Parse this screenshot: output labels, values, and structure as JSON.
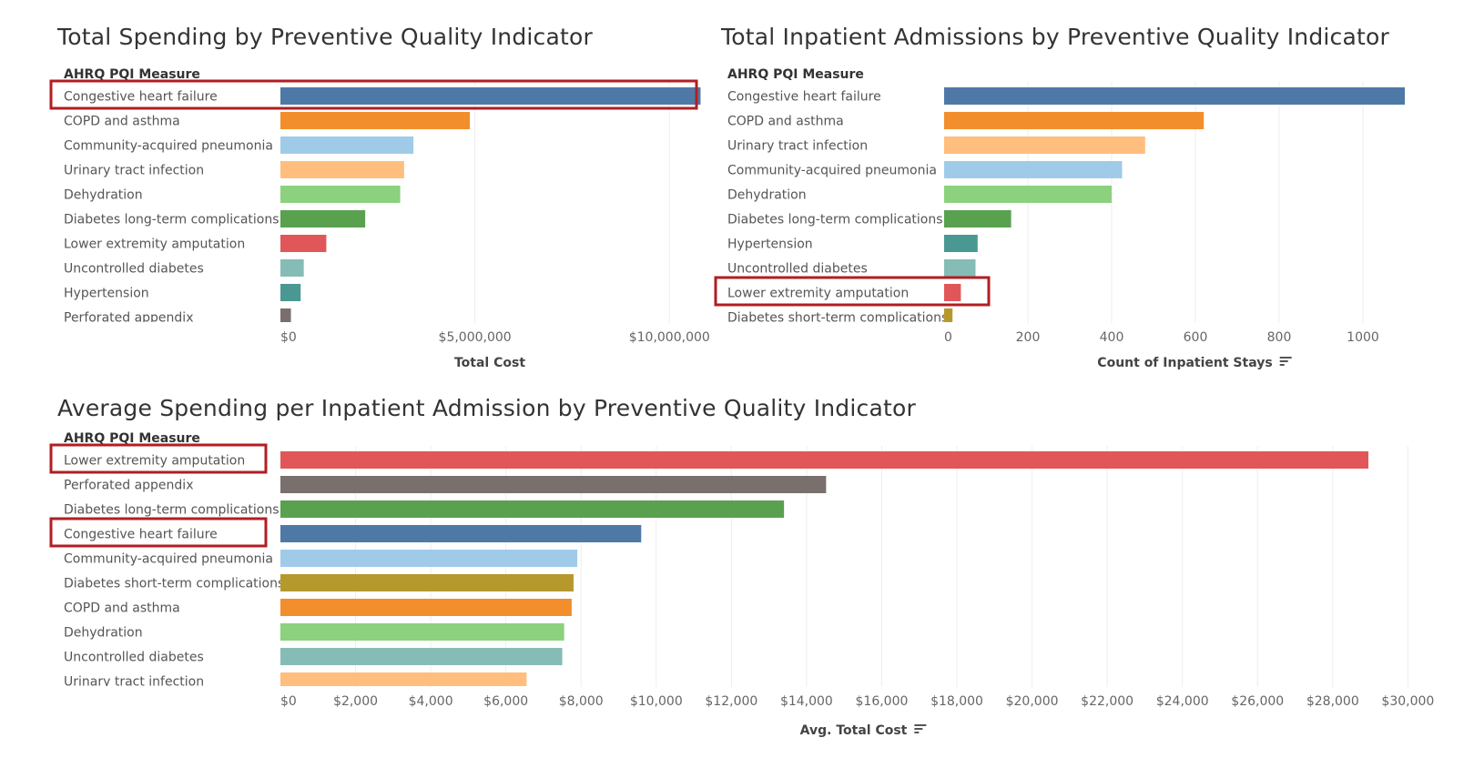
{
  "palette": {
    "Congestive heart failure": "#4e79a7",
    "COPD and asthma": "#f28e2b",
    "Community-acquired pneumonia": "#a0cbe8",
    "Urinary tract infection": "#ffbe7d",
    "Dehydration": "#8cd17d",
    "Diabetes long-term complications": "#59a14f",
    "Lower extremity amputation": "#e15759",
    "Uncontrolled diabetes": "#86bcb6",
    "Hypertension": "#499894",
    "Perforated appendix": "#79706e",
    "Diabetes short-term complications": "#b6992d"
  },
  "highlight_color": "#b01e23",
  "chart_data": [
    {
      "id": "spending",
      "type": "bar",
      "title": "Total Spending by Preventive Quality Indicator",
      "dimension_header": "AHRQ PQI Measure",
      "xlabel": "Total Cost",
      "xlim": [
        0,
        11000000
      ],
      "xticks": [
        0,
        5000000,
        10000000
      ],
      "xtick_labels": [
        "$0",
        "$5,000,000",
        "$10,000,000"
      ],
      "sort_icon": false,
      "categories": [
        "Congestive heart failure",
        "COPD and asthma",
        "Community-acquired pneumonia",
        "Urinary tract infection",
        "Dehydration",
        "Diabetes long-term complications",
        "Lower extremity amputation",
        "Uncontrolled diabetes",
        "Hypertension",
        "Perforated appendix"
      ],
      "values": [
        10800000,
        4870000,
        3420000,
        3180000,
        3080000,
        2180000,
        1180000,
        600000,
        520000,
        270000
      ],
      "highlighted": [
        "Congestive heart failure"
      ]
    },
    {
      "id": "admissions",
      "type": "bar",
      "title": "Total Inpatient Admissions by Preventive Quality Indicator",
      "dimension_header": "AHRQ PQI Measure",
      "xlabel": "Count of Inpatient Stays",
      "xlim": [
        0,
        1150
      ],
      "xticks": [
        0,
        200,
        400,
        600,
        800,
        1000
      ],
      "xtick_labels": [
        "0",
        "200",
        "400",
        "600",
        "800",
        "1000"
      ],
      "sort_icon": true,
      "categories": [
        "Congestive heart failure",
        "COPD and asthma",
        "Urinary tract infection",
        "Community-acquired pneumonia",
        "Dehydration",
        "Diabetes long-term complications",
        "Hypertension",
        "Uncontrolled diabetes",
        "Lower extremity amputation",
        "Diabetes short-term complications"
      ],
      "values": [
        1100,
        620,
        480,
        425,
        400,
        160,
        80,
        75,
        40,
        20
      ],
      "highlighted": [
        "Lower extremity amputation"
      ]
    },
    {
      "id": "average",
      "type": "bar",
      "title": "Average Spending per Inpatient Admission by Preventive Quality Indicator",
      "dimension_header": "AHRQ PQI Measure",
      "xlabel": "Avg. Total Cost",
      "xlim": [
        0,
        30500
      ],
      "xticks": [
        0,
        2000,
        4000,
        6000,
        8000,
        10000,
        12000,
        14000,
        16000,
        18000,
        20000,
        22000,
        24000,
        26000,
        28000,
        30000
      ],
      "xtick_labels": [
        "$0",
        "$2,000",
        "$4,000",
        "$6,000",
        "$8,000",
        "$10,000",
        "$12,000",
        "$14,000",
        "$16,000",
        "$18,000",
        "$20,000",
        "$22,000",
        "$24,000",
        "$26,000",
        "$28,000",
        "$30,000"
      ],
      "sort_icon": true,
      "categories": [
        "Lower extremity amputation",
        "Perforated appendix",
        "Diabetes long-term complications",
        "Congestive heart failure",
        "Community-acquired pneumonia",
        "Diabetes short-term complications",
        "COPD and asthma",
        "Dehydration",
        "Uncontrolled diabetes",
        "Urinary tract infection"
      ],
      "values": [
        28950,
        14520,
        13400,
        9600,
        7900,
        7800,
        7750,
        7550,
        7500,
        6550
      ],
      "highlighted": [
        "Lower extremity amputation",
        "Congestive heart failure"
      ]
    }
  ]
}
